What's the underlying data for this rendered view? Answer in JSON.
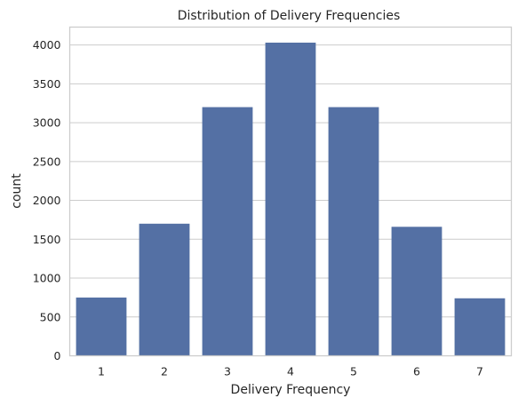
{
  "chart_data": {
    "type": "bar",
    "title": "Distribution of Delivery Frequencies",
    "xlabel": "Delivery Frequency",
    "ylabel": "count",
    "categories": [
      "1",
      "2",
      "3",
      "4",
      "5",
      "6",
      "7"
    ],
    "values": [
      750,
      1700,
      3200,
      4030,
      3200,
      1660,
      740
    ],
    "ylim": [
      0,
      4230
    ],
    "yticks": [
      0,
      500,
      1000,
      1500,
      2000,
      2500,
      3000,
      3500,
      4000
    ],
    "grid": "horizontal",
    "colors": {
      "bar": "#5470a4",
      "grid": "#cccccc"
    }
  }
}
